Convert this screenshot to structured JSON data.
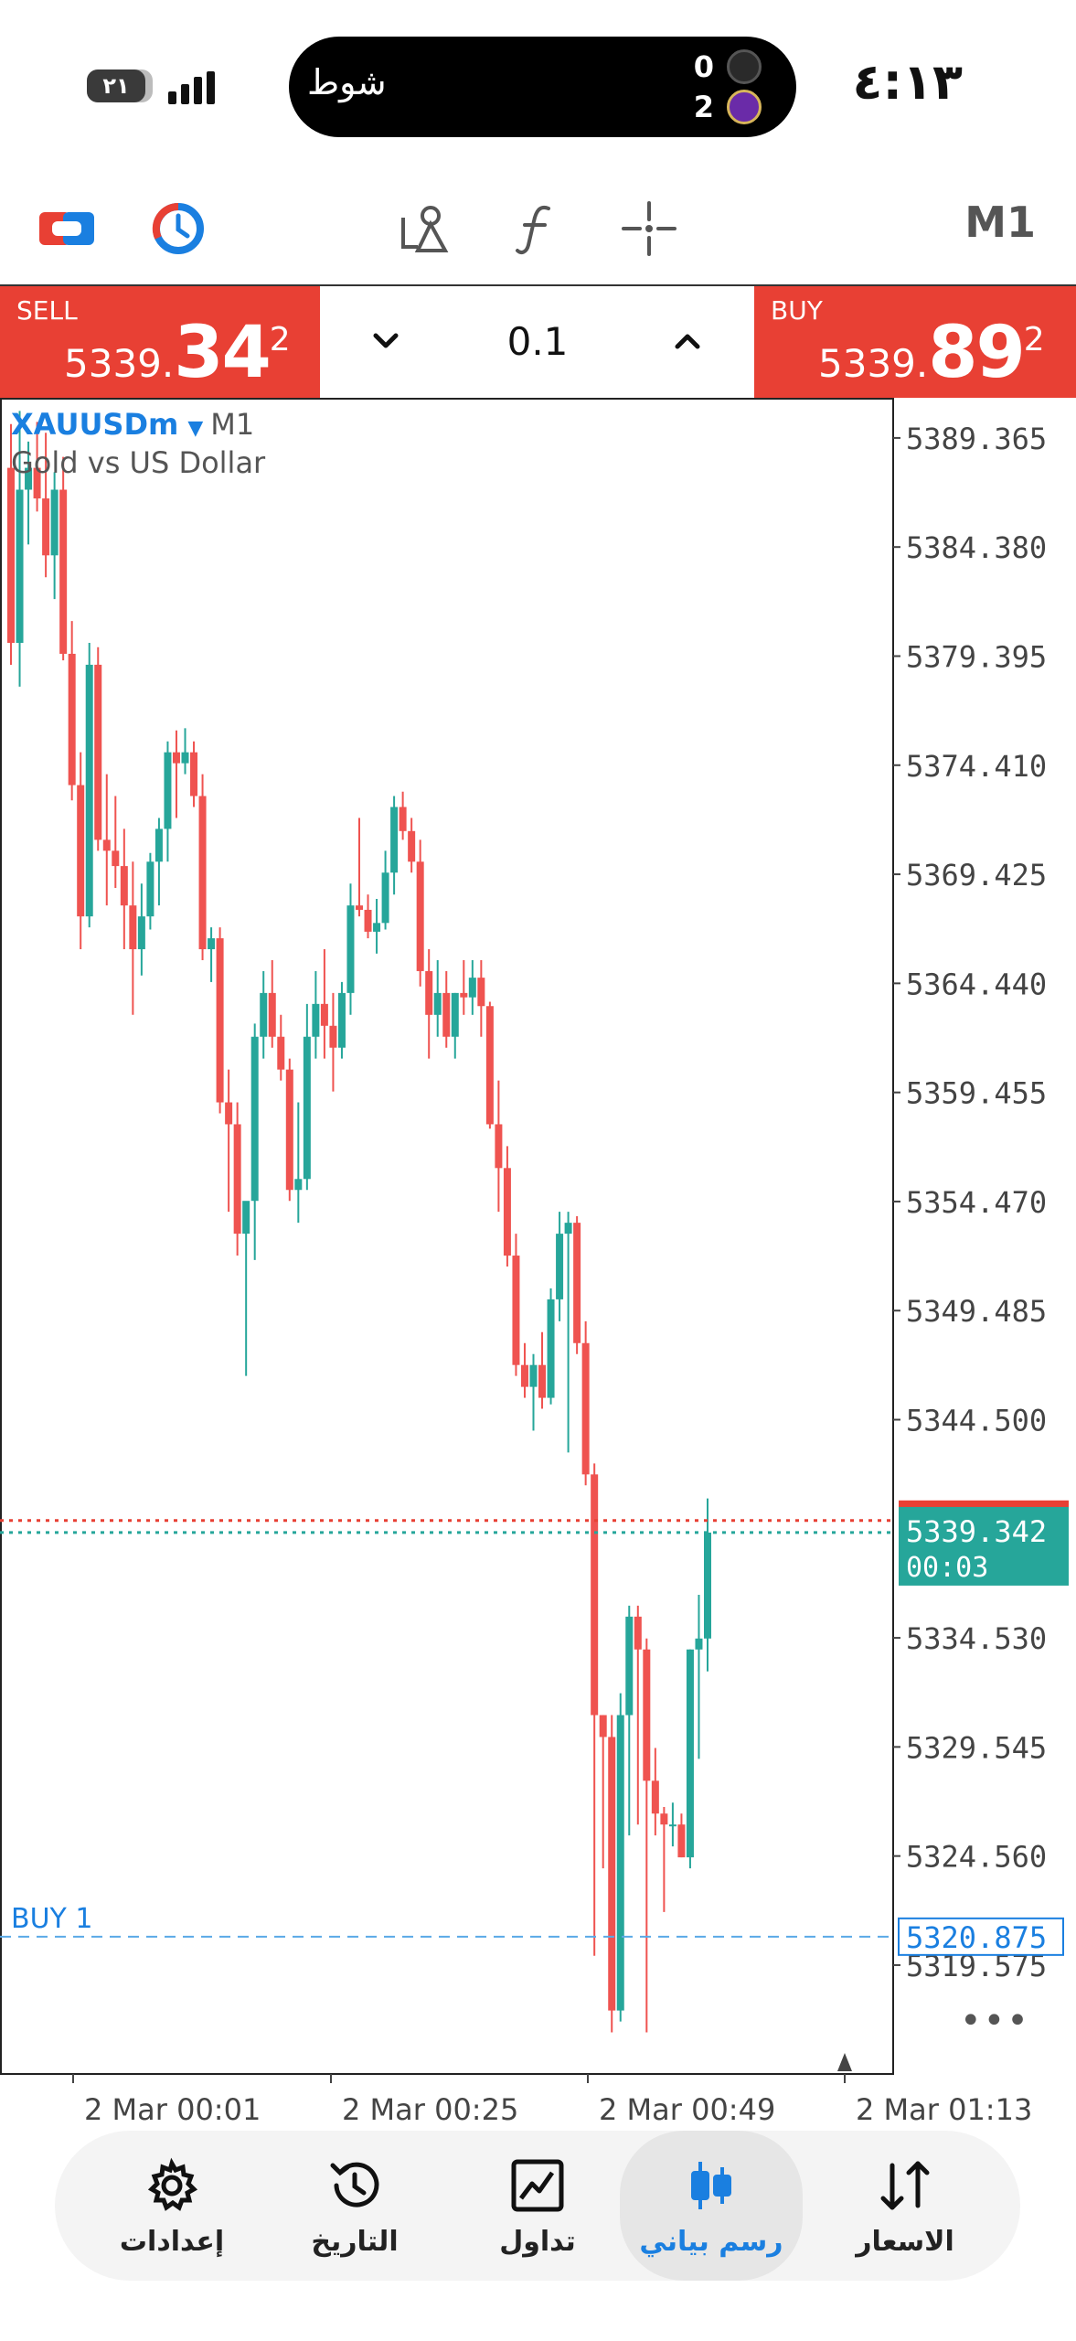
{
  "status_bar": {
    "time": "٤:١٣",
    "battery_level": "٢١",
    "live_activity": {
      "text": "شوط",
      "score_top": "0",
      "score_bottom": "2"
    }
  },
  "toolbar": {
    "timeframe": "M1",
    "icons": [
      "switch-account-icon",
      "timer-icon",
      "objects-icon",
      "indicators-icon",
      "crosshair-icon"
    ]
  },
  "trade_panel": {
    "sell_label": "SELL",
    "sell_price_prefix": "5339.",
    "sell_price_big": "34",
    "sell_price_sup": "2",
    "buy_label": "BUY",
    "buy_price_prefix": "5339.",
    "buy_price_big": "89",
    "buy_price_sup": "2",
    "lot": "0.1"
  },
  "chart_data": {
    "type": "candlestick",
    "symbol": "XAUUSDm",
    "timeframe": "M1",
    "description": "Gold vs US Dollar",
    "y_ticks": [
      "5389.365",
      "5384.380",
      "5379.395",
      "5374.410",
      "5369.425",
      "5364.440",
      "5359.455",
      "5354.470",
      "5349.485",
      "5344.500",
      "5334.530",
      "5329.545",
      "5324.560",
      "5319.575"
    ],
    "ylim": [
      5314.6,
      5391.2
    ],
    "x_ticks": [
      "2 Mar 00:01",
      "2 Mar 00:25",
      "2 Mar 00:49",
      "2 Mar 01:13"
    ],
    "bid_price": "5339.342",
    "bid_value": 5339.342,
    "ask_value": 5339.892,
    "countdown": "00:03",
    "position_label": "BUY 1",
    "position_price": "5320.875",
    "position_value": 5320.875,
    "up_color": "#26a69a",
    "down_color": "#ef5350",
    "candles": [
      [
        5388.0,
        5390.0,
        5379.0,
        5380.0
      ],
      [
        5380.0,
        5390.6,
        5378.0,
        5387.0
      ],
      [
        5387.0,
        5389.2,
        5384.5,
        5388.0
      ],
      [
        5388.0,
        5390.1,
        5386.0,
        5386.6
      ],
      [
        5386.6,
        5389.6,
        5383.0,
        5384.0
      ],
      [
        5384.0,
        5387.8,
        5382.0,
        5387.0
      ],
      [
        5387.0,
        5388.5,
        5379.2,
        5379.5
      ],
      [
        5379.5,
        5381.0,
        5372.8,
        5373.5
      ],
      [
        5373.5,
        5375.0,
        5366.0,
        5367.5
      ],
      [
        5367.5,
        5380.0,
        5367.0,
        5379.0
      ],
      [
        5379.0,
        5379.8,
        5370.5,
        5371.0
      ],
      [
        5371.0,
        5374.0,
        5368.0,
        5370.5
      ],
      [
        5370.5,
        5373.0,
        5368.8,
        5369.8
      ],
      [
        5369.8,
        5371.5,
        5366.0,
        5368.0
      ],
      [
        5368.0,
        5370.0,
        5363.0,
        5366.0
      ],
      [
        5366.0,
        5369.0,
        5364.8,
        5367.5
      ],
      [
        5367.5,
        5370.4,
        5366.9,
        5370.0
      ],
      [
        5370.0,
        5372.0,
        5368.0,
        5371.5
      ],
      [
        5371.5,
        5375.5,
        5370.0,
        5375.0
      ],
      [
        5375.0,
        5376.0,
        5372.0,
        5374.5
      ],
      [
        5374.5,
        5376.1,
        5374.0,
        5375.0
      ],
      [
        5375.0,
        5375.5,
        5372.5,
        5373.0
      ],
      [
        5373.0,
        5374.0,
        5365.5,
        5366.0
      ],
      [
        5366.0,
        5367.0,
        5364.5,
        5366.5
      ],
      [
        5366.5,
        5367.0,
        5358.5,
        5359.0
      ],
      [
        5359.0,
        5360.5,
        5354.0,
        5358.0
      ],
      [
        5358.0,
        5359.0,
        5352.0,
        5353.0
      ],
      [
        5353.0,
        5354.0,
        5346.5,
        5354.5
      ],
      [
        5354.5,
        5362.6,
        5351.8,
        5362.0
      ],
      [
        5362.0,
        5365.0,
        5361.0,
        5364.0
      ],
      [
        5364.0,
        5365.5,
        5361.5,
        5362.0
      ],
      [
        5362.0,
        5363.0,
        5360.0,
        5360.5
      ],
      [
        5360.5,
        5361.0,
        5354.5,
        5355.0
      ],
      [
        5355.0,
        5359.0,
        5353.5,
        5355.5
      ],
      [
        5355.5,
        5363.5,
        5355.0,
        5362.0
      ],
      [
        5362.0,
        5365.0,
        5361.0,
        5363.5
      ],
      [
        5363.5,
        5366.0,
        5361.0,
        5362.5
      ],
      [
        5362.5,
        5364.0,
        5359.5,
        5361.5
      ],
      [
        5361.5,
        5364.5,
        5361.0,
        5364.0
      ],
      [
        5364.0,
        5369.0,
        5363.0,
        5368.0
      ],
      [
        5368.0,
        5372.0,
        5367.5,
        5367.8
      ],
      [
        5367.8,
        5368.5,
        5366.5,
        5366.8
      ],
      [
        5366.8,
        5368.3,
        5365.8,
        5367.2
      ],
      [
        5367.2,
        5370.5,
        5366.9,
        5369.5
      ],
      [
        5369.5,
        5373.0,
        5368.5,
        5372.5
      ],
      [
        5372.5,
        5373.2,
        5371.0,
        5371.4
      ],
      [
        5371.4,
        5372.0,
        5369.5,
        5370.0
      ],
      [
        5370.0,
        5371.0,
        5364.3,
        5365.0
      ],
      [
        5365.0,
        5366.0,
        5361.0,
        5363.0
      ],
      [
        5363.0,
        5365.5,
        5362.0,
        5364.0
      ],
      [
        5364.0,
        5365.0,
        5361.5,
        5362.0
      ],
      [
        5362.0,
        5364.0,
        5361.0,
        5364.0
      ],
      [
        5364.0,
        5365.5,
        5363.0,
        5363.8
      ],
      [
        5363.8,
        5365.5,
        5363.0,
        5364.7
      ],
      [
        5364.7,
        5365.5,
        5362.0,
        5363.4
      ],
      [
        5363.4,
        5363.6,
        5357.8,
        5358.0
      ],
      [
        5358.0,
        5360.0,
        5354.0,
        5356.0
      ],
      [
        5356.0,
        5357.0,
        5351.5,
        5352.0
      ],
      [
        5352.0,
        5353.0,
        5346.5,
        5347.0
      ],
      [
        5347.0,
        5348.0,
        5345.5,
        5346.0
      ],
      [
        5346.0,
        5347.5,
        5344.0,
        5347.0
      ],
      [
        5347.0,
        5348.5,
        5345.0,
        5345.5
      ],
      [
        5345.5,
        5350.5,
        5345.2,
        5350.0
      ],
      [
        5350.0,
        5354.0,
        5349.0,
        5353.0
      ],
      [
        5353.0,
        5354.0,
        5343.0,
        5353.5
      ],
      [
        5353.5,
        5353.8,
        5347.5,
        5348.0
      ],
      [
        5348.0,
        5349.0,
        5341.5,
        5342.0
      ],
      [
        5342.0,
        5342.5,
        5320.0,
        5331.0
      ],
      [
        5331.0,
        5331.0,
        5324.0,
        5330.0
      ],
      [
        5330.0,
        5331.0,
        5316.5,
        5317.5
      ],
      [
        5317.5,
        5332.0,
        5317.0,
        5331.0
      ],
      [
        5331.0,
        5336.0,
        5325.5,
        5335.5
      ],
      [
        5335.5,
        5336.0,
        5326.0,
        5334.0
      ],
      [
        5334.0,
        5334.5,
        5316.5,
        5328.0
      ],
      [
        5328.0,
        5329.5,
        5325.5,
        5326.5
      ],
      [
        5326.5,
        5326.8,
        5322.0,
        5326.0
      ],
      [
        5326.0,
        5327.0,
        5325.0,
        5326.0
      ],
      [
        5326.0,
        5326.5,
        5324.5,
        5324.5
      ],
      [
        5324.5,
        5334.0,
        5324.0,
        5334.0
      ],
      [
        5334.0,
        5336.5,
        5329.0,
        5334.5
      ],
      [
        5334.5,
        5340.9,
        5333.0,
        5339.342
      ]
    ]
  },
  "bottom_nav": {
    "items": [
      {
        "label": "إعدادات",
        "icon": "gear-icon"
      },
      {
        "label": "التاريخ",
        "icon": "history-icon"
      },
      {
        "label": "تداول",
        "icon": "trade-chart-icon"
      },
      {
        "label": "رسم بياني",
        "icon": "candles-icon"
      },
      {
        "label": "الاسعار",
        "icon": "quotes-icon"
      }
    ],
    "active": "رسم بياني"
  }
}
